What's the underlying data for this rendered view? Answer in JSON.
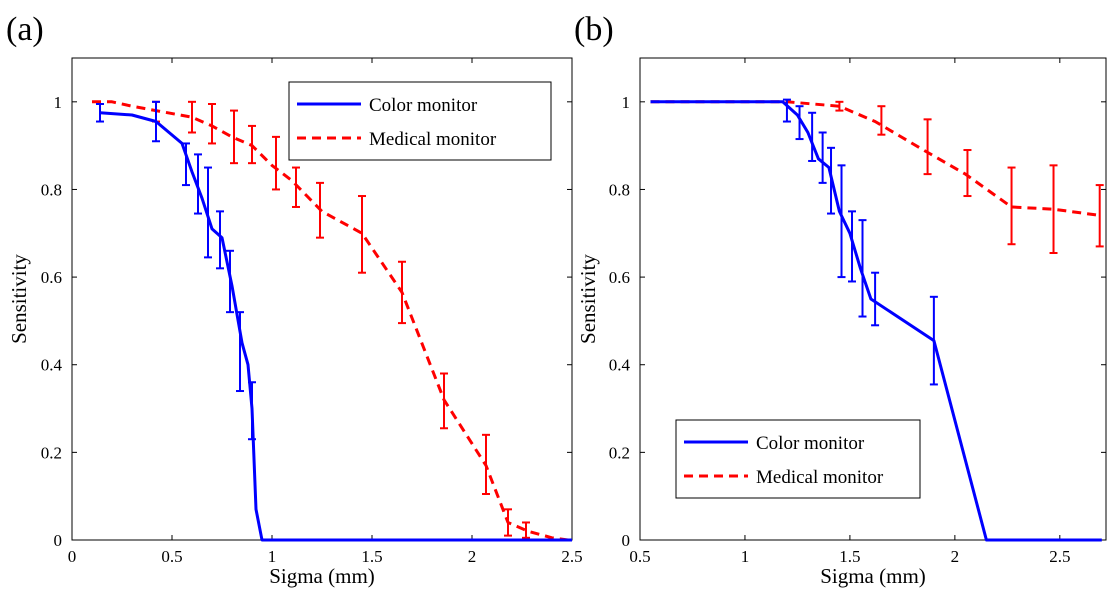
{
  "chart_data": [
    {
      "type": "line",
      "panel_label": "(a)",
      "xlabel": "Sigma (mm)",
      "ylabel": "Sensitivity",
      "xlim": [
        0,
        2.5
      ],
      "ylim": [
        0,
        1.1
      ],
      "xticks": [
        0,
        0.5,
        1,
        1.5,
        2,
        2.5
      ],
      "yticks": [
        0,
        0.2,
        0.4,
        0.6,
        0.8,
        1
      ],
      "legend_position": "top-right",
      "series": [
        {
          "name": "Color monitor",
          "color": "#0000ff",
          "style": "solid",
          "x": [
            0.14,
            0.3,
            0.42,
            0.55,
            0.6,
            0.65,
            0.7,
            0.75,
            0.8,
            0.85,
            0.88,
            0.9,
            0.92,
            0.95,
            1.0,
            2.5
          ],
          "y": [
            0.975,
            0.97,
            0.955,
            0.905,
            0.84,
            0.78,
            0.71,
            0.69,
            0.58,
            0.45,
            0.4,
            0.3,
            0.07,
            0.0,
            0.0,
            0.0
          ],
          "errorbars": [
            {
              "x": 0.14,
              "lo": 0.955,
              "hi": 0.995
            },
            {
              "x": 0.42,
              "lo": 0.91,
              "hi": 1.0
            },
            {
              "x": 0.57,
              "lo": 0.81,
              "hi": 0.905
            },
            {
              "x": 0.63,
              "lo": 0.745,
              "hi": 0.88
            },
            {
              "x": 0.68,
              "lo": 0.645,
              "hi": 0.85
            },
            {
              "x": 0.74,
              "lo": 0.62,
              "hi": 0.75
            },
            {
              "x": 0.79,
              "lo": 0.52,
              "hi": 0.66
            },
            {
              "x": 0.84,
              "lo": 0.34,
              "hi": 0.52
            },
            {
              "x": 0.9,
              "lo": 0.23,
              "hi": 0.36
            }
          ]
        },
        {
          "name": "Medical monitor",
          "color": "#ff0000",
          "style": "dashed",
          "x": [
            0.1,
            0.2,
            0.3,
            0.42,
            0.6,
            0.7,
            0.8,
            0.9,
            1.0,
            1.1,
            1.25,
            1.45,
            1.65,
            1.86,
            2.07,
            2.18,
            2.28,
            2.4,
            2.48
          ],
          "y": [
            1.0,
            1.0,
            0.99,
            0.98,
            0.965,
            0.945,
            0.92,
            0.9,
            0.855,
            0.82,
            0.75,
            0.7,
            0.565,
            0.32,
            0.17,
            0.04,
            0.02,
            0.005,
            0.0
          ],
          "errorbars": [
            {
              "x": 0.42,
              "lo": 0.955,
              "hi": 1.0
            },
            {
              "x": 0.6,
              "lo": 0.93,
              "hi": 1.0
            },
            {
              "x": 0.7,
              "lo": 0.905,
              "hi": 0.995
            },
            {
              "x": 0.81,
              "lo": 0.86,
              "hi": 0.98
            },
            {
              "x": 0.9,
              "lo": 0.86,
              "hi": 0.945
            },
            {
              "x": 1.02,
              "lo": 0.8,
              "hi": 0.92
            },
            {
              "x": 1.12,
              "lo": 0.76,
              "hi": 0.85
            },
            {
              "x": 1.24,
              "lo": 0.69,
              "hi": 0.815
            },
            {
              "x": 1.45,
              "lo": 0.61,
              "hi": 0.785
            },
            {
              "x": 1.65,
              "lo": 0.495,
              "hi": 0.635
            },
            {
              "x": 1.86,
              "lo": 0.255,
              "hi": 0.38
            },
            {
              "x": 2.07,
              "lo": 0.105,
              "hi": 0.24
            },
            {
              "x": 2.18,
              "lo": 0.01,
              "hi": 0.07
            },
            {
              "x": 2.27,
              "lo": 0.005,
              "hi": 0.04
            }
          ]
        }
      ]
    },
    {
      "type": "line",
      "panel_label": "(b)",
      "xlabel": "Sigma (mm)",
      "ylabel": "Sensitivity",
      "xlim": [
        0.5,
        2.72
      ],
      "ylim": [
        0,
        1.1
      ],
      "xticks": [
        0.5,
        1,
        1.5,
        2,
        2.5
      ],
      "yticks": [
        0,
        0.2,
        0.4,
        0.6,
        0.8,
        1
      ],
      "legend_position": "bottom-left",
      "series": [
        {
          "name": "Color monitor",
          "color": "#0000ff",
          "style": "solid",
          "x": [
            0.55,
            1.0,
            1.18,
            1.25,
            1.3,
            1.35,
            1.4,
            1.45,
            1.5,
            1.55,
            1.6,
            1.9,
            2.15,
            2.7
          ],
          "y": [
            1.0,
            1.0,
            1.0,
            0.97,
            0.93,
            0.87,
            0.85,
            0.75,
            0.7,
            0.62,
            0.55,
            0.455,
            0.0,
            0.0
          ],
          "errorbars": [
            {
              "x": 1.2,
              "lo": 0.955,
              "hi": 1.005
            },
            {
              "x": 1.26,
              "lo": 0.915,
              "hi": 0.99
            },
            {
              "x": 1.32,
              "lo": 0.865,
              "hi": 0.975
            },
            {
              "x": 1.37,
              "lo": 0.815,
              "hi": 0.93
            },
            {
              "x": 1.41,
              "lo": 0.745,
              "hi": 0.895
            },
            {
              "x": 1.46,
              "lo": 0.6,
              "hi": 0.855
            },
            {
              "x": 1.51,
              "lo": 0.59,
              "hi": 0.75
            },
            {
              "x": 1.56,
              "lo": 0.51,
              "hi": 0.73
            },
            {
              "x": 1.62,
              "lo": 0.49,
              "hi": 0.61
            },
            {
              "x": 1.9,
              "lo": 0.355,
              "hi": 0.555
            }
          ]
        },
        {
          "name": "Medical monitor",
          "color": "#ff0000",
          "style": "dashed",
          "x": [
            0.55,
            1.0,
            1.2,
            1.45,
            1.62,
            1.85,
            2.05,
            2.27,
            2.47,
            2.7
          ],
          "y": [
            1.0,
            1.0,
            1.0,
            0.99,
            0.955,
            0.89,
            0.835,
            0.76,
            0.755,
            0.74
          ],
          "errorbars": [
            {
              "x": 1.45,
              "lo": 0.98,
              "hi": 1.0
            },
            {
              "x": 1.65,
              "lo": 0.925,
              "hi": 0.99
            },
            {
              "x": 1.87,
              "lo": 0.835,
              "hi": 0.96
            },
            {
              "x": 2.06,
              "lo": 0.785,
              "hi": 0.89
            },
            {
              "x": 2.27,
              "lo": 0.675,
              "hi": 0.85
            },
            {
              "x": 2.47,
              "lo": 0.655,
              "hi": 0.855
            },
            {
              "x": 2.69,
              "lo": 0.67,
              "hi": 0.81
            }
          ]
        }
      ]
    }
  ]
}
